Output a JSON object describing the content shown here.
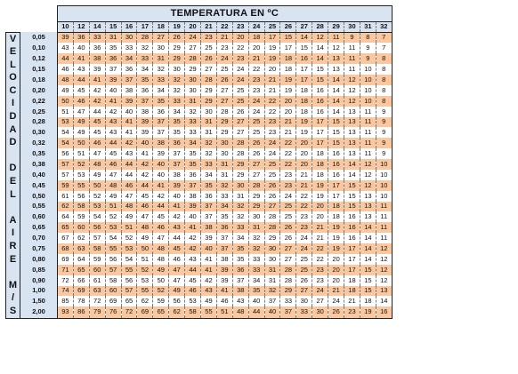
{
  "title": "TEMPERATURA EN ºC",
  "side_label": [
    "V",
    "E",
    "L",
    "O",
    "C",
    "I",
    "D",
    "A",
    "D",
    "",
    "D",
    "E",
    "L",
    "",
    "A",
    "I",
    "R",
    "E",
    "",
    "M",
    "/",
    "S"
  ],
  "temperatures": [
    "10",
    "12",
    "14",
    "15",
    "16",
    "17",
    "18",
    "19",
    "20",
    "21",
    "22",
    "23",
    "24",
    "25",
    "26",
    "27",
    "28",
    "29",
    "30",
    "31",
    "32"
  ],
  "rows": [
    {
      "wind": "0,05",
      "values": [
        "39",
        "36",
        "33",
        "31",
        "30",
        "28",
        "27",
        "26",
        "24",
        "23",
        "21",
        "20",
        "18",
        "17",
        "15",
        "14",
        "12",
        "11",
        "9",
        "8",
        "7"
      ]
    },
    {
      "wind": "0,10",
      "values": [
        "43",
        "40",
        "36",
        "35",
        "33",
        "32",
        "30",
        "29",
        "27",
        "25",
        "23",
        "22",
        "20",
        "19",
        "17",
        "15",
        "14",
        "12",
        "11",
        "9",
        "7"
      ]
    },
    {
      "wind": "0,12",
      "values": [
        "44",
        "41",
        "38",
        "36",
        "34",
        "33",
        "31",
        "29",
        "28",
        "26",
        "24",
        "23",
        "21",
        "19",
        "18",
        "16",
        "14",
        "13",
        "11",
        "9",
        "8"
      ]
    },
    {
      "wind": "0,15",
      "values": [
        "46",
        "43",
        "39",
        "37",
        "36",
        "34",
        "32",
        "30",
        "29",
        "27",
        "25",
        "24",
        "22",
        "20",
        "18",
        "17",
        "15",
        "13",
        "11",
        "10",
        "8"
      ]
    },
    {
      "wind": "0,18",
      "values": [
        "48",
        "44",
        "41",
        "39",
        "37",
        "35",
        "33",
        "32",
        "30",
        "28",
        "26",
        "24",
        "23",
        "21",
        "19",
        "17",
        "15",
        "14",
        "12",
        "10",
        "8"
      ]
    },
    {
      "wind": "0,20",
      "values": [
        "49",
        "45",
        "42",
        "40",
        "38",
        "36",
        "34",
        "32",
        "30",
        "29",
        "27",
        "25",
        "23",
        "21",
        "19",
        "18",
        "16",
        "14",
        "12",
        "10",
        "8"
      ]
    },
    {
      "wind": "0,22",
      "values": [
        "50",
        "46",
        "42",
        "41",
        "39",
        "37",
        "35",
        "33",
        "31",
        "29",
        "27",
        "25",
        "24",
        "22",
        "20",
        "18",
        "16",
        "14",
        "12",
        "10",
        "8"
      ]
    },
    {
      "wind": "0,25",
      "values": [
        "51",
        "47",
        "44",
        "42",
        "40",
        "38",
        "36",
        "34",
        "32",
        "30",
        "28",
        "26",
        "24",
        "22",
        "20",
        "18",
        "16",
        "14",
        "13",
        "11",
        "9"
      ]
    },
    {
      "wind": "0,28",
      "values": [
        "53",
        "49",
        "45",
        "43",
        "41",
        "39",
        "37",
        "35",
        "33",
        "31",
        "29",
        "27",
        "25",
        "23",
        "21",
        "19",
        "17",
        "15",
        "13",
        "11",
        "9"
      ]
    },
    {
      "wind": "0,30",
      "values": [
        "54",
        "49",
        "45",
        "43",
        "41",
        "39",
        "37",
        "35",
        "33",
        "31",
        "29",
        "27",
        "25",
        "23",
        "21",
        "19",
        "17",
        "15",
        "13",
        "11",
        "9"
      ]
    },
    {
      "wind": "0,32",
      "values": [
        "54",
        "50",
        "46",
        "44",
        "42",
        "40",
        "38",
        "36",
        "34",
        "32",
        "30",
        "28",
        "26",
        "24",
        "22",
        "20",
        "17",
        "15",
        "13",
        "11",
        "9"
      ]
    },
    {
      "wind": "0,35",
      "values": [
        "56",
        "51",
        "47",
        "45",
        "43",
        "41",
        "39",
        "37",
        "35",
        "32",
        "30",
        "28",
        "26",
        "24",
        "22",
        "20",
        "18",
        "16",
        "13",
        "11",
        "9"
      ]
    },
    {
      "wind": "0,38",
      "values": [
        "57",
        "52",
        "48",
        "46",
        "44",
        "42",
        "40",
        "37",
        "35",
        "33",
        "31",
        "29",
        "27",
        "25",
        "22",
        "20",
        "18",
        "16",
        "14",
        "12",
        "10"
      ]
    },
    {
      "wind": "0,40",
      "values": [
        "57",
        "53",
        "49",
        "47",
        "44",
        "42",
        "40",
        "38",
        "36",
        "34",
        "31",
        "29",
        "27",
        "25",
        "23",
        "21",
        "18",
        "16",
        "14",
        "12",
        "10"
      ]
    },
    {
      "wind": "0,45",
      "values": [
        "59",
        "55",
        "50",
        "48",
        "46",
        "44",
        "41",
        "39",
        "37",
        "35",
        "32",
        "30",
        "28",
        "26",
        "23",
        "21",
        "19",
        "17",
        "15",
        "12",
        "10"
      ]
    },
    {
      "wind": "0,50",
      "values": [
        "61",
        "56",
        "52",
        "49",
        "47",
        "45",
        "42",
        "40",
        "38",
        "36",
        "33",
        "31",
        "29",
        "26",
        "24",
        "22",
        "19",
        "17",
        "15",
        "13",
        "10"
      ]
    },
    {
      "wind": "0,55",
      "values": [
        "62",
        "58",
        "53",
        "51",
        "48",
        "46",
        "44",
        "41",
        "39",
        "37",
        "34",
        "32",
        "29",
        "27",
        "25",
        "22",
        "20",
        "18",
        "15",
        "13",
        "11"
      ]
    },
    {
      "wind": "0,60",
      "values": [
        "64",
        "59",
        "54",
        "52",
        "49",
        "47",
        "45",
        "42",
        "40",
        "37",
        "35",
        "32",
        "30",
        "28",
        "25",
        "23",
        "20",
        "18",
        "16",
        "13",
        "11"
      ]
    },
    {
      "wind": "0,65",
      "values": [
        "65",
        "60",
        "56",
        "53",
        "51",
        "48",
        "46",
        "43",
        "41",
        "38",
        "36",
        "33",
        "31",
        "28",
        "26",
        "23",
        "21",
        "19",
        "16",
        "14",
        "11"
      ]
    },
    {
      "wind": "0,70",
      "values": [
        "67",
        "62",
        "57",
        "54",
        "52",
        "49",
        "47",
        "44",
        "42",
        "39",
        "37",
        "34",
        "32",
        "29",
        "26",
        "24",
        "21",
        "19",
        "16",
        "14",
        "11"
      ]
    },
    {
      "wind": "0,75",
      "values": [
        "68",
        "63",
        "58",
        "55",
        "53",
        "50",
        "48",
        "45",
        "42",
        "40",
        "37",
        "35",
        "32",
        "30",
        "27",
        "24",
        "22",
        "19",
        "17",
        "14",
        "12"
      ]
    },
    {
      "wind": "0,80",
      "values": [
        "69",
        "64",
        "59",
        "56",
        "54",
        "51",
        "48",
        "46",
        "43",
        "41",
        "38",
        "35",
        "33",
        "30",
        "27",
        "25",
        "22",
        "20",
        "17",
        "14",
        "12"
      ]
    },
    {
      "wind": "0,85",
      "values": [
        "71",
        "65",
        "60",
        "57",
        "55",
        "52",
        "49",
        "47",
        "44",
        "41",
        "39",
        "36",
        "33",
        "31",
        "28",
        "25",
        "23",
        "20",
        "17",
        "15",
        "12"
      ]
    },
    {
      "wind": "0,90",
      "values": [
        "72",
        "66",
        "61",
        "58",
        "56",
        "53",
        "50",
        "47",
        "45",
        "42",
        "39",
        "37",
        "34",
        "31",
        "28",
        "26",
        "23",
        "20",
        "18",
        "15",
        "12"
      ]
    },
    {
      "wind": "1,00",
      "values": [
        "74",
        "69",
        "63",
        "60",
        "57",
        "55",
        "52",
        "49",
        "46",
        "43",
        "41",
        "38",
        "35",
        "32",
        "29",
        "27",
        "24",
        "21",
        "18",
        "15",
        "13"
      ]
    },
    {
      "wind": "1,50",
      "values": [
        "85",
        "78",
        "72",
        "69",
        "65",
        "62",
        "59",
        "56",
        "53",
        "49",
        "46",
        "43",
        "40",
        "37",
        "33",
        "30",
        "27",
        "24",
        "21",
        "18",
        "14"
      ]
    },
    {
      "wind": "2,00",
      "values": [
        "93",
        "86",
        "79",
        "76",
        "72",
        "69",
        "65",
        "62",
        "58",
        "55",
        "51",
        "48",
        "44",
        "40",
        "37",
        "33",
        "30",
        "26",
        "23",
        "19",
        "16"
      ]
    }
  ],
  "colors": {
    "header": "#d9e4f2",
    "odd_row": "#fac79e",
    "even_row": "#ffffff"
  }
}
